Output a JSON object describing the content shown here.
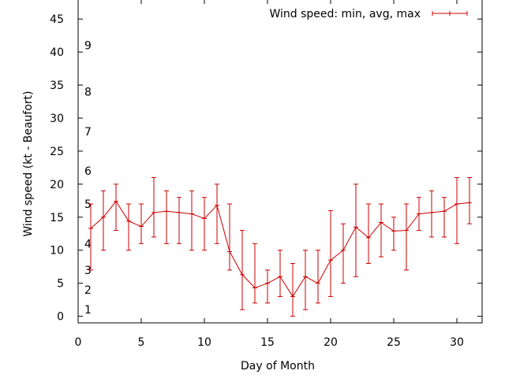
{
  "chart_data": {
    "type": "line",
    "title": "",
    "xlabel": "Day of Month",
    "ylabel": "Wind speed (kt - Beaufort)",
    "xlim": [
      0,
      32
    ],
    "ylim": [
      -1,
      48
    ],
    "x_ticks": [
      0,
      5,
      10,
      15,
      20,
      25,
      30
    ],
    "y_ticks": [
      0,
      5,
      10,
      15,
      20,
      25,
      30,
      35,
      40,
      45
    ],
    "grid": false,
    "legend_position": "top-right",
    "beaufort_labels": [
      {
        "label": "1",
        "y": 1
      },
      {
        "label": "2",
        "y": 4
      },
      {
        "label": "3",
        "y": 7
      },
      {
        "label": "4",
        "y": 11
      },
      {
        "label": "5",
        "y": 17
      },
      {
        "label": "6",
        "y": 22
      },
      {
        "label": "7",
        "y": 28
      },
      {
        "label": "8",
        "y": 34
      },
      {
        "label": "9",
        "y": 41
      }
    ],
    "series": [
      {
        "name": "Wind speed: min, avg, max",
        "color": "#cc0000",
        "x": [
          1,
          2,
          3,
          4,
          5,
          6,
          7,
          8,
          9,
          10,
          11,
          12,
          13,
          14,
          15,
          16,
          17,
          18,
          19,
          20,
          21,
          22,
          23,
          24,
          25,
          26,
          27,
          28,
          29,
          30,
          31
        ],
        "avg": [
          13.3,
          15.0,
          17.4,
          14.4,
          13.6,
          15.7,
          15.9,
          15.7,
          15.5,
          14.8,
          16.8,
          9.8,
          6.3,
          4.3,
          5.0,
          6.0,
          3.0,
          6.0,
          5.0,
          8.5,
          10.0,
          13.5,
          11.9,
          14.2,
          12.9,
          13.0,
          15.5,
          15.7,
          15.9,
          17.0,
          17.2
        ],
        "min": [
          7,
          10,
          13,
          10,
          11,
          12,
          11,
          11,
          10,
          10,
          11,
          7,
          1,
          2,
          2,
          3,
          0,
          1,
          2,
          3,
          5,
          6,
          8,
          9,
          10,
          7,
          13,
          12,
          12,
          11,
          14
        ],
        "max": [
          17,
          19,
          20,
          17,
          17,
          21,
          19,
          18,
          19,
          18,
          20,
          17,
          13,
          11,
          7,
          10,
          8,
          10,
          10,
          16,
          14,
          20,
          17,
          17,
          15,
          17,
          18,
          19,
          18,
          21,
          21
        ]
      }
    ]
  }
}
